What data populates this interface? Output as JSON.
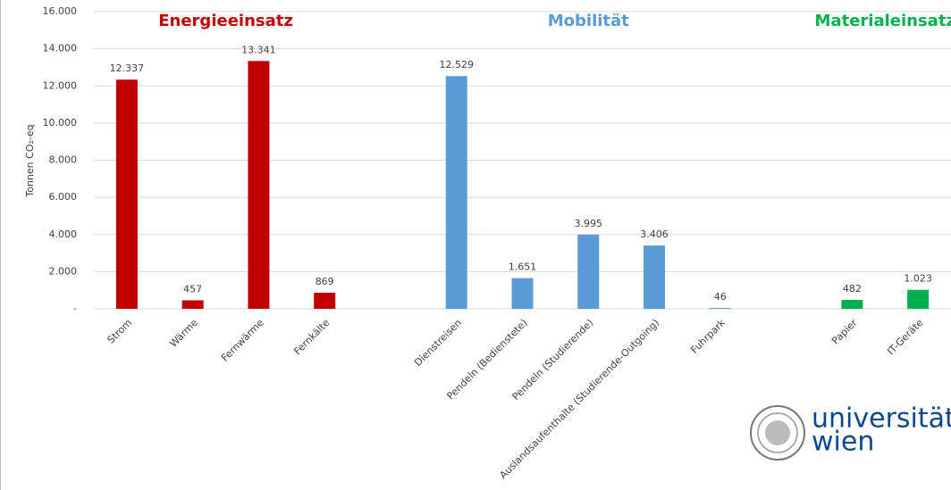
{
  "chart_data": {
    "type": "bar",
    "ylabel": "Tonnen CO₂-eq",
    "ylim": [
      0,
      16000
    ],
    "yticks": [
      {
        "value": 0,
        "label": "-"
      },
      {
        "value": 2000,
        "label": "2.000"
      },
      {
        "value": 4000,
        "label": "4.000"
      },
      {
        "value": 6000,
        "label": "6.000"
      },
      {
        "value": 8000,
        "label": "8.000"
      },
      {
        "value": 10000,
        "label": "10.000"
      },
      {
        "value": 12000,
        "label": "12.000"
      },
      {
        "value": 14000,
        "label": "14.000"
      },
      {
        "value": 16000,
        "label": "16.000"
      }
    ],
    "grid": true,
    "groups": [
      {
        "label": "Energieeinsatz",
        "color": "#c00000",
        "categories": [
          "Strom",
          "Wärme",
          "Fernwärme",
          "Fernkälte"
        ],
        "values": [
          12337,
          457,
          13341,
          869
        ],
        "value_labels": [
          "12.337",
          "457",
          "13.341",
          "869"
        ]
      },
      {
        "label": "Mobilität",
        "color": "#5b9bd5",
        "categories": [
          "Dienstreisen",
          "Pendeln (Bedienstete)",
          "Pendeln (Studierende)",
          "Auslandsaufenthalte (Studierende-Outgoing)",
          "Fuhrpark"
        ],
        "values": [
          12529,
          1651,
          3995,
          3406,
          46
        ],
        "value_labels": [
          "12.529",
          "1.651",
          "3.995",
          "3.406",
          "46"
        ]
      },
      {
        "label": "Materialeinsatz",
        "color": "#00b050",
        "categories": [
          "Papier",
          "IT-Geräte"
        ],
        "values": [
          482,
          1023
        ],
        "value_labels": [
          "482",
          "1.023"
        ]
      }
    ]
  },
  "logo": {
    "line1": "universität",
    "line2": "wien"
  }
}
